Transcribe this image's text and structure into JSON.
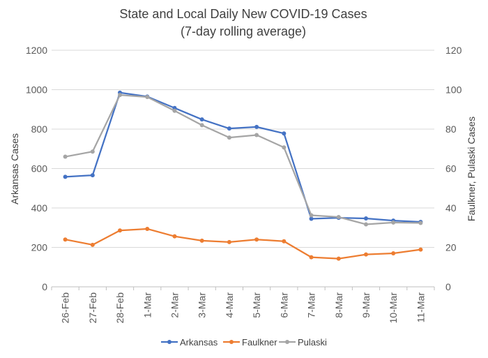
{
  "chart_data": {
    "type": "line",
    "title": "State and Local Daily New COVID-19 Cases",
    "subtitle": "(7-day rolling average)",
    "categories": [
      "26-Feb",
      "27-Feb",
      "28-Feb",
      "1-Mar",
      "2-Mar",
      "3-Mar",
      "4-Mar",
      "5-Mar",
      "6-Mar",
      "7-Mar",
      "8-Mar",
      "9-Mar",
      "10-Mar",
      "11-Mar"
    ],
    "ylabel": "Arkansas Cases",
    "y2label": "Faulkner, Pulaski Cases",
    "ylim": [
      0,
      1200
    ],
    "y2lim": [
      0,
      120
    ],
    "yticks": [
      "0",
      "200",
      "400",
      "600",
      "800",
      "1000",
      "1200"
    ],
    "y2ticks": [
      "0",
      "20",
      "40",
      "60",
      "80",
      "100",
      "120"
    ],
    "grid": true,
    "legend_position": "bottom",
    "series": [
      {
        "name": "Arkansas",
        "axis": "left",
        "color": "#4472C4",
        "values": [
          558,
          566,
          985,
          965,
          907,
          849,
          803,
          811,
          778,
          345,
          350,
          347,
          336,
          329
        ]
      },
      {
        "name": "Faulkner",
        "axis": "right",
        "color": "#ED7D31",
        "values": [
          24,
          21.3,
          28.6,
          29.4,
          25.6,
          23.4,
          22.7,
          24,
          23.1,
          15,
          14.3,
          16.4,
          17,
          18.9
        ]
      },
      {
        "name": "Pulaski",
        "axis": "right",
        "color": "#A5A5A5",
        "values": [
          66,
          68.6,
          97.3,
          96.3,
          89.3,
          82,
          75.7,
          77,
          70.7,
          36.3,
          35.4,
          31.7,
          32.6,
          32.4
        ]
      }
    ]
  }
}
